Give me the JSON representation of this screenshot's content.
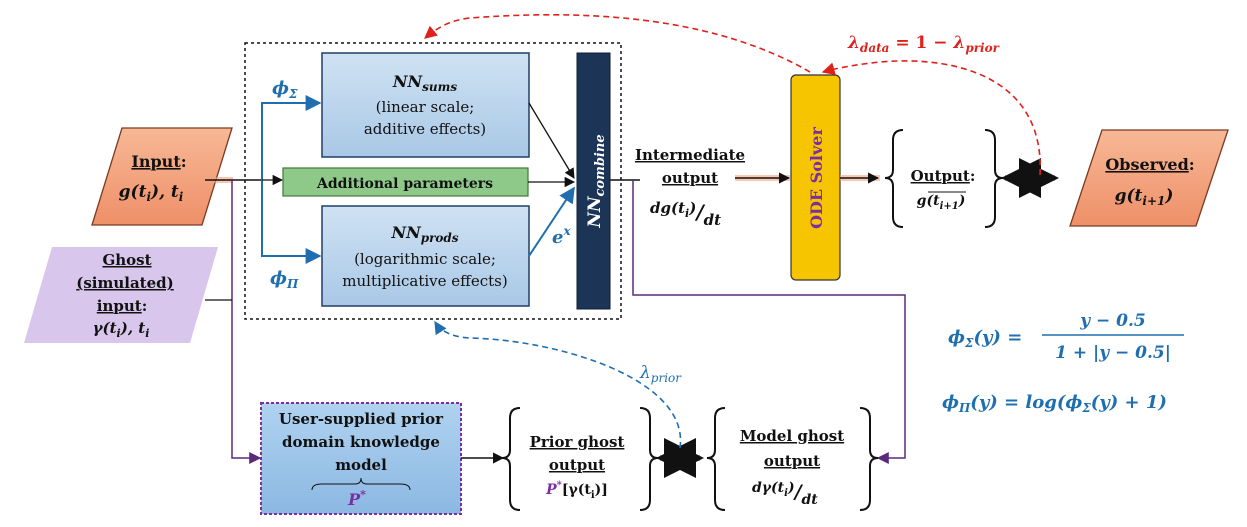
{
  "colors": {
    "nn_box": "#bcd6ec",
    "nn_box_border": "#1f3f66",
    "combine_box": "#1c3557",
    "params_box": "#8fc98a",
    "ode_box": "#f7c500",
    "ode_text": "#7a2ea0",
    "input_shape": "#f4a582",
    "ghost_shape": "#d9c6ec",
    "prior_box": "#9ec5ea",
    "accent_blue": "#1f6fb0",
    "accent_red": "#e0201b"
  },
  "nodes": {
    "nn_sums": {
      "title_main": "NN",
      "title_sub": "sums",
      "line1": "(linear scale;",
      "line2": "additive effects)"
    },
    "nn_prods": {
      "title_main": "NN",
      "title_sub": "prods",
      "line1": "(logarithmic scale;",
      "line2": "multiplicative effects)"
    },
    "additional_params": "Additional parameters",
    "nn_combine": {
      "main": "NN",
      "sub": "combine"
    },
    "ode_solver": "ODE Solver",
    "input": {
      "label": "Input",
      "value": "g(t",
      "value_sub": "i",
      "value_tail": "), t",
      "value_tail_sub": "i"
    },
    "ghost_input": {
      "line1": "Ghost",
      "line2": "(simulated)",
      "line3": "input",
      "value": "γ(t",
      "value_sub": "i",
      "value_tail": "), t",
      "value_tail_sub": "i"
    },
    "intermediate": {
      "line1": "Intermediate",
      "line2": "output",
      "deriv": "dg(t",
      "deriv_sub": "i",
      "deriv_tail": ")",
      "per": "/",
      "dt": "dt"
    },
    "output": {
      "label": "Output",
      "value": "g(t",
      "value_sub": "i+1",
      "value_tail": ")"
    },
    "observed": {
      "label": "Observed",
      "value": "g(t",
      "value_sub": "i+1",
      "value_tail": ")"
    },
    "prior_model": {
      "line1": "User-supplied prior",
      "line2": "domain knowledge",
      "line3": "model",
      "symbol": "P",
      "symbol_sup": "*"
    },
    "prior_ghost": {
      "line1": "Prior ghost",
      "line2": "output",
      "value_p": "P",
      "value_sup": "*",
      "value_rest": "[γ(t",
      "value_sub": "i",
      "value_tail": ")]"
    },
    "model_ghost": {
      "line1": "Model ghost",
      "line2": "output",
      "deriv": "dγ(t",
      "deriv_sub": "i",
      "deriv_tail": ")",
      "per": "/",
      "dt": "dt"
    }
  },
  "edge_labels": {
    "phi_sigma": {
      "main": "ϕ",
      "sub": "Σ"
    },
    "phi_pi": {
      "main": "ϕ",
      "sub": "Π"
    },
    "exp": {
      "main": "e",
      "sup": "x"
    },
    "lambda_prior": {
      "main": "λ",
      "sub": "prior"
    },
    "lambda_data": {
      "main": "λ",
      "sub": "data",
      "eq": " = 1 − ",
      "main2": "λ",
      "sub2": "prior"
    }
  },
  "equations": {
    "phi_sigma_lhs_main": "ϕ",
    "phi_sigma_lhs_sub": "Σ",
    "phi_sigma_lhs_tail": "(y)  =",
    "phi_sigma_num": "y − 0.5",
    "phi_sigma_den": "1 + |y − 0.5|",
    "phi_pi_lhs_main": "ϕ",
    "phi_pi_lhs_sub": "Π",
    "phi_pi_rhs": "(y) = log(ϕ",
    "phi_pi_rhs_sub": "Σ",
    "phi_pi_rhs_tail": "(y) + 1)"
  }
}
